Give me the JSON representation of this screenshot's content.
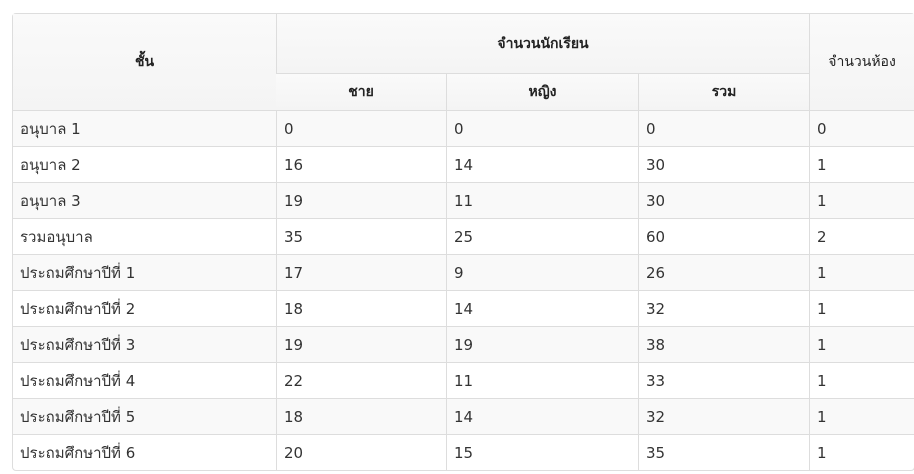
{
  "table": {
    "headers": {
      "grade": "ชั้น",
      "students": "จำนวนนักเรียน",
      "rooms": "จำนวนห้อง",
      "male": "ชาย",
      "female": "หญิง",
      "total": "รวม"
    },
    "rows": [
      [
        "อนุบาล 1",
        "0",
        "0",
        "0",
        "0"
      ],
      [
        "อนุบาล 2",
        "16",
        "14",
        "30",
        "1"
      ],
      [
        "อนุบาล 3",
        "19",
        "11",
        "30",
        "1"
      ],
      [
        "รวมอนุบาล",
        "35",
        "25",
        "60",
        "2"
      ],
      [
        "ประถมศึกษาปีที่ 1",
        "17",
        "9",
        "26",
        "1"
      ],
      [
        "ประถมศึกษาปีที่ 2",
        "18",
        "14",
        "32",
        "1"
      ],
      [
        "ประถมศึกษาปีที่ 3",
        "19",
        "19",
        "38",
        "1"
      ],
      [
        "ประถมศึกษาปีที่ 4",
        "22",
        "11",
        "33",
        "1"
      ],
      [
        "ประถมศึกษาปีที่ 5",
        "18",
        "14",
        "32",
        "1"
      ],
      [
        "ประถมศึกษาปีที่ 6",
        "20",
        "15",
        "35",
        "1"
      ]
    ]
  }
}
